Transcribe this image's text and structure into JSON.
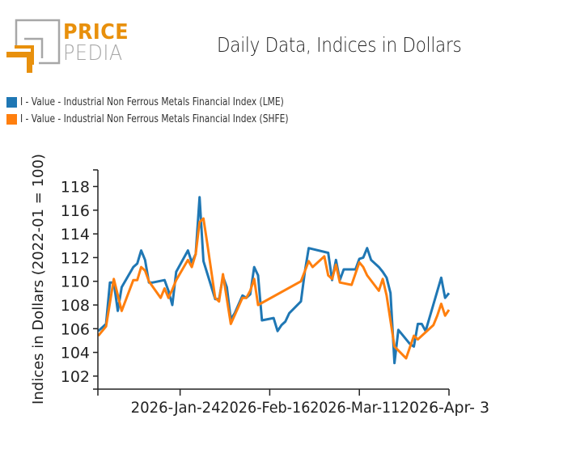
{
  "logo": {
    "line1": "PRICE",
    "line2": "PEDIA",
    "colors": {
      "orange": "#e8900c",
      "gray": "#a7a7a7"
    }
  },
  "title": "Daily Data, Indices in Dollars",
  "legend": [
    {
      "label": "I - Value - Industrial Non Ferrous Metals Financial Index (LME)",
      "color": "#1f77b4"
    },
    {
      "label": "I - Value - Industrial Non Ferrous Metals Financial Index (SHFE)",
      "color": "#ff7f0e"
    }
  ],
  "chart_data": {
    "type": "line",
    "title": "Daily Data, Indices in Dollars",
    "xlabel": "",
    "ylabel": "Indices in Dollars (2022-01 = 100)",
    "ylim": [
      100.9,
      119.4
    ],
    "xlim": [
      "2026-01-03",
      "2026-04-03"
    ],
    "yticks": [
      102,
      104,
      106,
      108,
      110,
      112,
      114,
      116,
      118
    ],
    "xticks": [
      {
        "date": "2026-01-24",
        "label": "2026-Jan-24"
      },
      {
        "date": "2026-02-16",
        "label": "2026-Feb-16"
      },
      {
        "date": "2026-03-11",
        "label": "2026-Mar-11"
      },
      {
        "date": "2026-04-03",
        "label": "2026-Apr- 3"
      }
    ],
    "grid": false,
    "legend_position": "top-left",
    "series": [
      {
        "name": "I - Value - Industrial Non Ferrous Metals Financial Index (LME)",
        "color": "#1f77b4",
        "points": [
          [
            "2026-01-03",
            105.8
          ],
          [
            "2026-01-05",
            106.4
          ],
          [
            "2026-01-06",
            109.9
          ],
          [
            "2026-01-07",
            109.9
          ],
          [
            "2026-01-08",
            107.5
          ],
          [
            "2026-01-09",
            109.5
          ],
          [
            "2026-01-12",
            111.2
          ],
          [
            "2026-01-13",
            111.5
          ],
          [
            "2026-01-14",
            112.6
          ],
          [
            "2026-01-15",
            111.8
          ],
          [
            "2026-01-16",
            109.9
          ],
          [
            "2026-01-17",
            109.9
          ],
          [
            "2026-01-20",
            110.1
          ],
          [
            "2026-01-21",
            109.2
          ],
          [
            "2026-01-22",
            108.0
          ],
          [
            "2026-01-23",
            110.8
          ],
          [
            "2026-01-26",
            112.6
          ],
          [
            "2026-01-27",
            111.6
          ],
          [
            "2026-01-28",
            112.3
          ],
          [
            "2026-01-29",
            117.1
          ],
          [
            "2026-01-30",
            111.7
          ],
          [
            "2026-02-02",
            108.5
          ],
          [
            "2026-02-03",
            108.5
          ],
          [
            "2026-02-04",
            110.4
          ],
          [
            "2026-02-05",
            109.5
          ],
          [
            "2026-02-06",
            106.8
          ],
          [
            "2026-02-07",
            107.3
          ],
          [
            "2026-02-09",
            108.8
          ],
          [
            "2026-02-10",
            108.6
          ],
          [
            "2026-02-11",
            108.9
          ],
          [
            "2026-02-12",
            111.2
          ],
          [
            "2026-02-13",
            110.5
          ],
          [
            "2026-02-14",
            106.7
          ],
          [
            "2026-02-17",
            106.9
          ],
          [
            "2026-02-18",
            105.8
          ],
          [
            "2026-02-19",
            106.3
          ],
          [
            "2026-02-20",
            106.6
          ],
          [
            "2026-02-21",
            107.3
          ],
          [
            "2026-02-24",
            108.3
          ],
          [
            "2026-02-25",
            110.8
          ],
          [
            "2026-02-26",
            112.8
          ],
          [
            "2026-03-03",
            112.4
          ],
          [
            "2026-03-04",
            110.1
          ],
          [
            "2026-03-05",
            111.8
          ],
          [
            "2026-03-06",
            110.1
          ],
          [
            "2026-03-07",
            111.0
          ],
          [
            "2026-03-10",
            111.0
          ],
          [
            "2026-03-11",
            111.9
          ],
          [
            "2026-03-12",
            112.0
          ],
          [
            "2026-03-13",
            112.8
          ],
          [
            "2026-03-14",
            111.8
          ],
          [
            "2026-03-16",
            111.2
          ],
          [
            "2026-03-17",
            110.8
          ],
          [
            "2026-03-18",
            110.3
          ],
          [
            "2026-03-19",
            109.0
          ],
          [
            "2026-03-20",
            103.1
          ],
          [
            "2026-03-21",
            105.9
          ],
          [
            "2026-03-22",
            105.5
          ],
          [
            "2026-03-24",
            104.7
          ],
          [
            "2026-03-25",
            104.5
          ],
          [
            "2026-03-26",
            106.4
          ],
          [
            "2026-03-27",
            106.4
          ],
          [
            "2026-03-28",
            105.8
          ],
          [
            "2026-04-01",
            110.3
          ],
          [
            "2026-04-02",
            108.6
          ],
          [
            "2026-04-03",
            109.0
          ]
        ]
      },
      {
        "name": "I - Value - Industrial Non Ferrous Metals Financial Index (SHFE)",
        "color": "#ff7f0e",
        "points": [
          [
            "2026-01-03",
            105.4
          ],
          [
            "2026-01-05",
            106.2
          ],
          [
            "2026-01-07",
            110.2
          ],
          [
            "2026-01-09",
            107.5
          ],
          [
            "2026-01-12",
            110.1
          ],
          [
            "2026-01-13",
            110.1
          ],
          [
            "2026-01-14",
            111.2
          ],
          [
            "2026-01-15",
            110.9
          ],
          [
            "2026-01-16",
            110.0
          ],
          [
            "2026-01-19",
            108.6
          ],
          [
            "2026-01-20",
            109.4
          ],
          [
            "2026-01-21",
            108.6
          ],
          [
            "2026-01-22",
            109.3
          ],
          [
            "2026-01-23",
            110.1
          ],
          [
            "2026-01-26",
            111.8
          ],
          [
            "2026-01-27",
            111.2
          ],
          [
            "2026-01-28",
            112.3
          ],
          [
            "2026-01-29",
            115.0
          ],
          [
            "2026-01-30",
            115.3
          ],
          [
            "2026-01-31",
            113.1
          ],
          [
            "2026-02-02",
            108.6
          ],
          [
            "2026-02-03",
            108.3
          ],
          [
            "2026-02-04",
            110.6
          ],
          [
            "2026-02-06",
            106.4
          ],
          [
            "2026-02-09",
            108.6
          ],
          [
            "2026-02-10",
            108.6
          ],
          [
            "2026-02-11",
            109.2
          ],
          [
            "2026-02-12",
            110.2
          ],
          [
            "2026-02-13",
            108.0
          ],
          [
            "2026-02-24",
            110.0
          ],
          [
            "2026-02-26",
            111.7
          ],
          [
            "2026-02-27",
            111.2
          ],
          [
            "2026-03-02",
            112.1
          ],
          [
            "2026-03-03",
            110.5
          ],
          [
            "2026-03-04",
            110.2
          ],
          [
            "2026-03-05",
            111.4
          ],
          [
            "2026-03-06",
            109.9
          ],
          [
            "2026-03-09",
            109.7
          ],
          [
            "2026-03-11",
            111.6
          ],
          [
            "2026-03-12",
            111.2
          ],
          [
            "2026-03-13",
            110.5
          ],
          [
            "2026-03-16",
            109.2
          ],
          [
            "2026-03-17",
            110.2
          ],
          [
            "2026-03-18",
            108.8
          ],
          [
            "2026-03-20",
            104.5
          ],
          [
            "2026-03-23",
            103.5
          ],
          [
            "2026-03-25",
            105.4
          ],
          [
            "2026-03-26",
            105.1
          ],
          [
            "2026-03-30",
            106.3
          ],
          [
            "2026-03-31",
            107.1
          ],
          [
            "2026-04-01",
            108.1
          ],
          [
            "2026-04-02",
            107.1
          ],
          [
            "2026-04-03",
            107.6
          ]
        ]
      }
    ]
  }
}
